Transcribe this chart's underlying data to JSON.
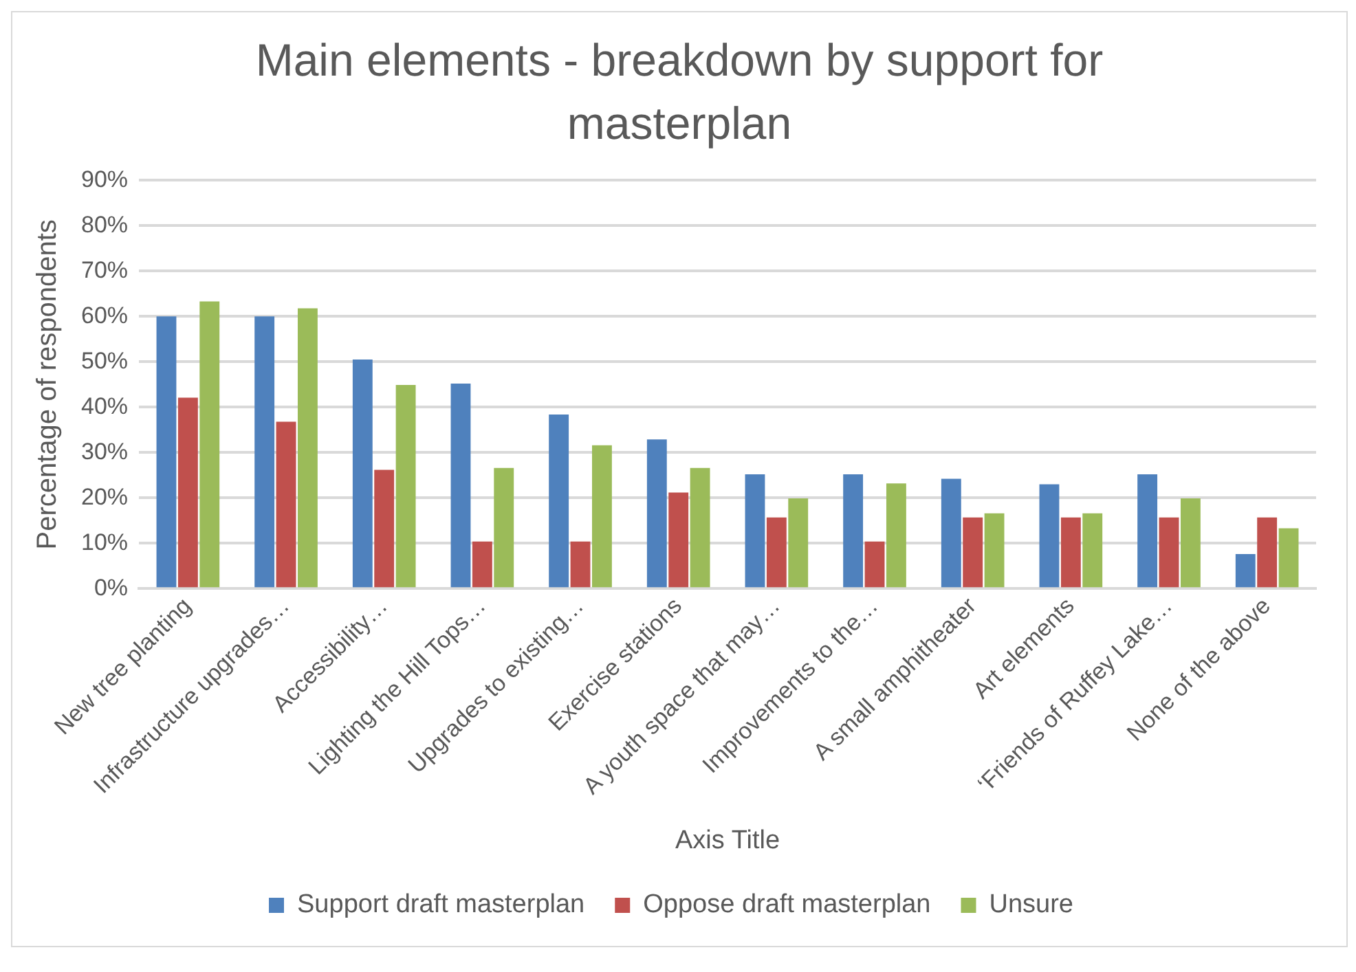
{
  "chart_data": {
    "type": "bar",
    "title": "Main elements - breakdown by support for masterplan",
    "xlabel": "Axis Title",
    "ylabel": "Percentage of respondents",
    "categories": [
      "New tree planting",
      "Infrastructure upgrades…",
      "Accessibility…",
      "Lighting the Hill Tops…",
      "Upgrades to existing…",
      "Exercise stations",
      "A youth space that may…",
      "Improvements to the…",
      "A small amphitheater",
      "Art elements",
      "‘Friends of Ruffey Lake…",
      "None of the above"
    ],
    "series": [
      {
        "name": "Support draft masterplan",
        "color": "#4f81bd",
        "values": [
          60,
          60,
          50.5,
          45.2,
          38.4,
          32.9,
          25.2,
          25.2,
          24.2,
          23,
          25.2,
          7.6
        ]
      },
      {
        "name": "Oppose draft masterplan",
        "color": "#c0504d",
        "values": [
          42.1,
          36.8,
          26.2,
          10.4,
          10.4,
          21.2,
          15.7,
          10.4,
          15.7,
          15.7,
          15.7,
          15.7
        ]
      },
      {
        "name": "Unsure",
        "color": "#9bbb59",
        "values": [
          63.3,
          61.8,
          44.9,
          26.6,
          31.6,
          26.6,
          19.9,
          23.2,
          16.6,
          16.6,
          19.9,
          13.3
        ]
      }
    ],
    "ylim": [
      0,
      90
    ],
    "yticks": [
      {
        "value": 0,
        "label": "0%"
      },
      {
        "value": 10,
        "label": "10%"
      },
      {
        "value": 20,
        "label": "20%"
      },
      {
        "value": 30,
        "label": "30%"
      },
      {
        "value": 40,
        "label": "40%"
      },
      {
        "value": 50,
        "label": "50%"
      },
      {
        "value": 60,
        "label": "60%"
      },
      {
        "value": 70,
        "label": "70%"
      },
      {
        "value": 80,
        "label": "80%"
      },
      {
        "value": 90,
        "label": "90%"
      }
    ],
    "grid": "y",
    "legend": "bottom"
  }
}
